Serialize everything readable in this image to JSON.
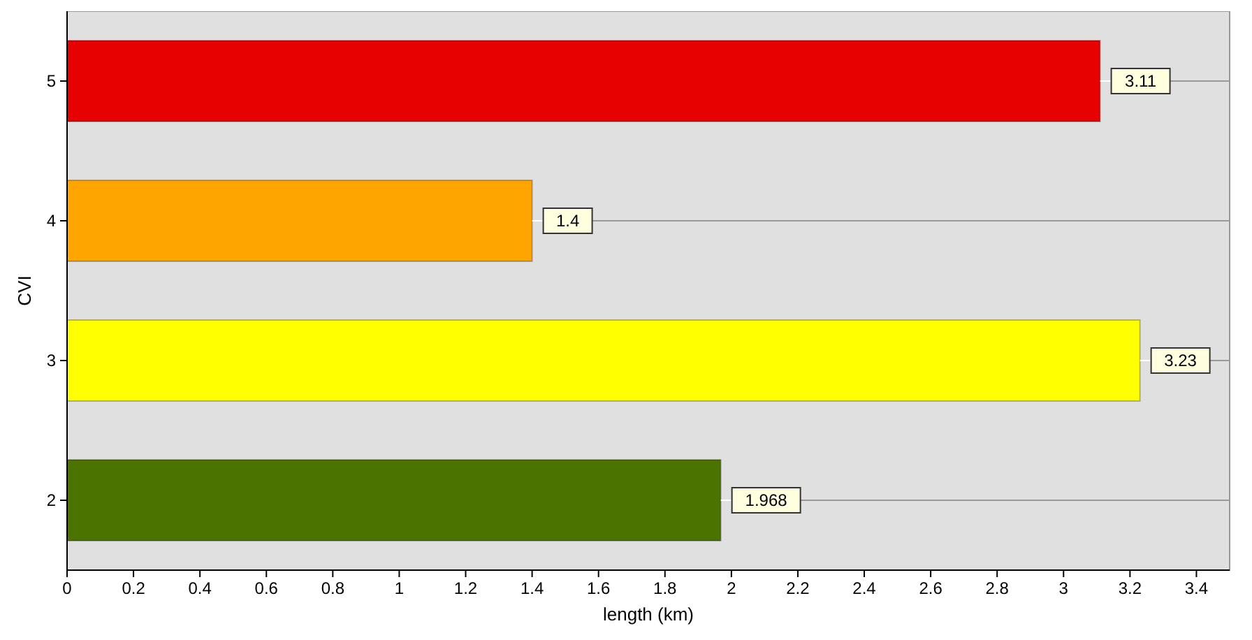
{
  "chart_data": {
    "type": "bar",
    "orientation": "horizontal",
    "categories": [
      "5",
      "4",
      "3",
      "2"
    ],
    "values": [
      3.11,
      1.4,
      3.23,
      1.968
    ],
    "colors": [
      "#e60000",
      "#ffa500",
      "#ffff00",
      "#4a7300"
    ],
    "xlim": [
      0,
      3.5
    ],
    "xticks": [
      0,
      0.2,
      0.4,
      0.6,
      0.8,
      1,
      1.2,
      1.4,
      1.6,
      1.8,
      2,
      2.2,
      2.4,
      2.6,
      2.8,
      3,
      3.2,
      3.4
    ],
    "xlabel": "length (km)",
    "ylabel": "CVI",
    "grid": "y",
    "data_labels": true
  }
}
